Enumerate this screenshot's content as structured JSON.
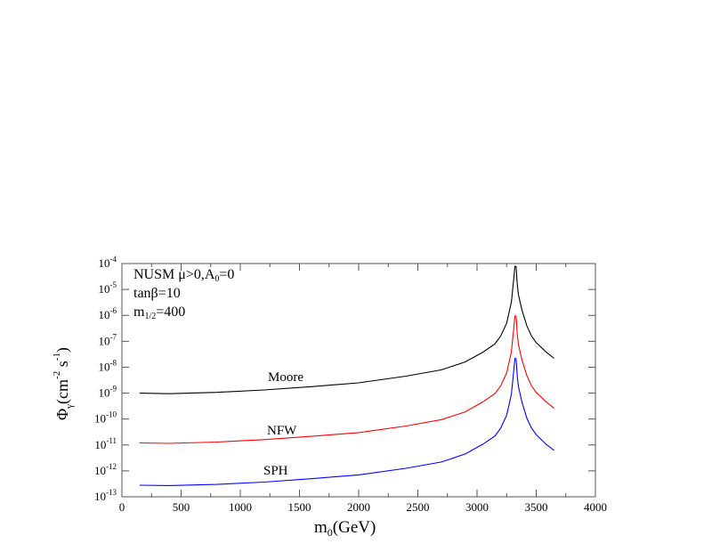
{
  "chart_data": {
    "type": "line",
    "xlabel": {
      "main": "m",
      "sub": "0",
      "rest": "(GeV)"
    },
    "ylabel": {
      "main": "Φ",
      "sub": "γ",
      "rest": "(cm",
      "sup1": "-2",
      "mid": " s",
      "sup2": "-1",
      "end": ")"
    },
    "xlim": [
      0,
      4000
    ],
    "ylim": [
      1e-13,
      0.0001
    ],
    "yscale": "log",
    "grid": false,
    "x_ticks": [
      "0",
      "500",
      "1000",
      "1500",
      "2000",
      "2500",
      "3000",
      "3500",
      "4000"
    ],
    "y_ticks": [
      {
        "base": "10",
        "exp": "-4"
      },
      {
        "base": "10",
        "exp": "-5"
      },
      {
        "base": "10",
        "exp": "-6"
      },
      {
        "base": "10",
        "exp": "-7"
      },
      {
        "base": "10",
        "exp": "-8"
      },
      {
        "base": "10",
        "exp": "-9"
      },
      {
        "base": "10",
        "exp": "-10"
      },
      {
        "base": "10",
        "exp": "-11"
      },
      {
        "base": "10",
        "exp": "-12"
      },
      {
        "base": "10",
        "exp": "-13"
      }
    ],
    "annotations": {
      "line1": {
        "a": "NUSM  μ>0,A",
        "sub": "0",
        "b": "=0"
      },
      "line2": "tanβ=10",
      "line3": {
        "a": "m",
        "sub": "1/2",
        "b": "=400"
      }
    },
    "x": [
      150,
      400,
      800,
      1200,
      1600,
      2000,
      2400,
      2700,
      2900,
      3050,
      3150,
      3200,
      3250,
      3290,
      3310,
      3320,
      3330,
      3340,
      3350,
      3380,
      3420,
      3460,
      3500,
      3580,
      3650
    ],
    "series": [
      {
        "name": "Moore",
        "color": "#000000",
        "values": [
          1e-09,
          9.5e-10,
          1.07e-09,
          1.32e-09,
          1.78e-09,
          2.5e-09,
          4.5e-09,
          7.9e-09,
          1.6e-08,
          3.8e-08,
          7.9e-08,
          1.6e-07,
          5e-07,
          3.2e-06,
          2.5e-05,
          7.9e-05,
          7.6e-05,
          1.6e-05,
          6.3e-06,
          1.6e-06,
          4e-07,
          1.6e-07,
          8.9e-08,
          4e-08,
          2.2e-08
        ]
      },
      {
        "name": "NFW",
        "color": "#ff0000",
        "values": [
          1.2e-11,
          1.15e-11,
          1.3e-11,
          1.6e-11,
          2.15e-11,
          3e-11,
          5.4e-11,
          9.5e-11,
          1.9e-10,
          4.6e-10,
          9.5e-10,
          1.9e-09,
          6e-09,
          3.9e-08,
          3e-07,
          9.5e-07,
          9.2e-07,
          1.9e-07,
          7.6e-08,
          1.9e-08,
          4.8e-09,
          1.9e-09,
          1.07e-09,
          4.8e-10,
          2.6e-10
        ]
      },
      {
        "name": "SPH",
        "color": "#0000ff",
        "values": [
          2.8e-13,
          2.7e-13,
          3e-13,
          3.7e-13,
          5e-13,
          7e-13,
          1.26e-12,
          2.2e-12,
          4.5e-12,
          1.07e-11,
          2.2e-11,
          4.5e-11,
          1.4e-10,
          9e-10,
          7e-09,
          2.2e-08,
          2.1e-08,
          4.5e-09,
          1.8e-09,
          4.5e-10,
          1.1e-10,
          4.5e-11,
          2.5e-11,
          1.1e-11,
          6.2e-12
        ]
      }
    ]
  }
}
